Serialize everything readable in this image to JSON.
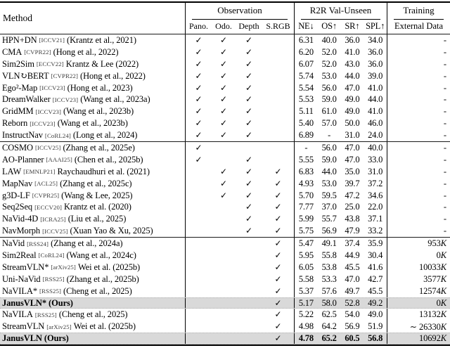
{
  "header": {
    "method": "Method",
    "groups": [
      {
        "title": "Observation",
        "cols": [
          "Pano.",
          "Odo.",
          "Depth",
          "S.RGB"
        ]
      },
      {
        "title": "R2R Val-Unseen",
        "cols": [
          "NE↓",
          "OS↑",
          "SR↑",
          "SPL↑"
        ]
      },
      {
        "title": "Training",
        "cols": [
          "External Data"
        ]
      }
    ]
  },
  "icons": {
    "check": "✓"
  },
  "colors": {
    "highlight": "#d9d9d9",
    "rule": "#000000"
  },
  "groups": [
    {
      "rows": [
        {
          "name": "HPN+DN",
          "tag": "ICCV21",
          "cite": "(Krantz et al., 2021)",
          "obs": [
            true,
            true,
            true,
            false
          ],
          "m": [
            "6.31",
            "40.0",
            "36.0",
            "34.0"
          ],
          "ext": "-",
          "extk": false,
          "bold": false,
          "boldMetrics": false,
          "highlight": false
        },
        {
          "name": "CMA",
          "tag": "CVPR22",
          "cite": "(Hong et al., 2022)",
          "obs": [
            true,
            true,
            true,
            false
          ],
          "m": [
            "6.20",
            "52.0",
            "41.0",
            "36.0"
          ],
          "ext": "-",
          "extk": false,
          "bold": false,
          "boldMetrics": false,
          "highlight": false
        },
        {
          "name": "Sim2Sim",
          "tag": "ECCV22",
          "cite": "Krantz & Lee (2022)",
          "obs": [
            true,
            true,
            true,
            false
          ],
          "m": [
            "6.07",
            "52.0",
            "43.0",
            "36.0"
          ],
          "ext": "-",
          "extk": false,
          "bold": false,
          "boldMetrics": false,
          "highlight": false
        },
        {
          "name": "VLN↻BERT",
          "tag": "CVPR22",
          "cite": "(Hong et al., 2022)",
          "obs": [
            true,
            true,
            true,
            false
          ],
          "m": [
            "5.74",
            "53.0",
            "44.0",
            "39.0"
          ],
          "ext": "-",
          "extk": false,
          "bold": false,
          "boldMetrics": false,
          "highlight": false
        },
        {
          "name": "Ego²-Map",
          "tag": "ICCV23",
          "cite": "(Hong et al., 2023)",
          "obs": [
            true,
            true,
            true,
            false
          ],
          "m": [
            "5.54",
            "56.0",
            "47.0",
            "41.0"
          ],
          "ext": "-",
          "extk": false,
          "bold": false,
          "boldMetrics": false,
          "highlight": false
        },
        {
          "name": "DreamWalker",
          "tag": "ICCV23",
          "cite": "(Wang et al., 2023a)",
          "obs": [
            true,
            true,
            true,
            false
          ],
          "m": [
            "5.53",
            "59.0",
            "49.0",
            "44.0"
          ],
          "ext": "-",
          "extk": false,
          "bold": false,
          "boldMetrics": false,
          "highlight": false
        },
        {
          "name": "GridMM",
          "tag": "ICCV23",
          "cite": "(Wang et al., 2023b)",
          "obs": [
            true,
            true,
            true,
            false
          ],
          "m": [
            "5.11",
            "61.0",
            "49.0",
            "41.0"
          ],
          "ext": "-",
          "extk": false,
          "bold": false,
          "boldMetrics": false,
          "highlight": false
        },
        {
          "name": "Reborn",
          "tag": "ICCV23",
          "cite": "(Wang et al., 2023b)",
          "obs": [
            true,
            true,
            true,
            false
          ],
          "m": [
            "5.40",
            "57.0",
            "50.0",
            "46.0"
          ],
          "ext": "-",
          "extk": false,
          "bold": false,
          "boldMetrics": false,
          "highlight": false
        },
        {
          "name": "InstructNav",
          "tag": "CoRL24",
          "cite": "(Long et al., 2024)",
          "obs": [
            true,
            true,
            true,
            false
          ],
          "m": [
            "6.89",
            "-",
            "31.0",
            "24.0"
          ],
          "ext": "-",
          "extk": false,
          "bold": false,
          "boldMetrics": false,
          "highlight": false
        }
      ]
    },
    {
      "rows": [
        {
          "name": "COSMO",
          "tag": "ICCV25",
          "cite": "(Zhang et al., 2025e)",
          "obs": [
            true,
            false,
            false,
            false
          ],
          "m": [
            "-",
            "56.0",
            "47.0",
            "40.0"
          ],
          "ext": "-",
          "extk": false,
          "bold": false,
          "boldMetrics": false,
          "highlight": false
        },
        {
          "name": "AO-Planner",
          "tag": "AAAI25",
          "cite": "(Chen et al., 2025b)",
          "obs": [
            true,
            false,
            true,
            false
          ],
          "m": [
            "5.55",
            "59.0",
            "47.0",
            "33.0"
          ],
          "ext": "-",
          "extk": false,
          "bold": false,
          "boldMetrics": false,
          "highlight": false
        },
        {
          "name": "LAW",
          "tag": "EMNLP21",
          "cite": "Raychaudhuri et al. (2021)",
          "obs": [
            false,
            true,
            true,
            true
          ],
          "m": [
            "6.83",
            "44.0",
            "35.0",
            "31.0"
          ],
          "ext": "-",
          "extk": false,
          "bold": false,
          "boldMetrics": false,
          "highlight": false
        },
        {
          "name": "MapNav",
          "tag": "ACL25",
          "cite": "(Zhang et al., 2025c)",
          "obs": [
            false,
            true,
            true,
            true
          ],
          "m": [
            "4.93",
            "53.0",
            "39.7",
            "37.2"
          ],
          "ext": "-",
          "extk": false,
          "bold": false,
          "boldMetrics": false,
          "highlight": false
        },
        {
          "name": "g3D-LF",
          "tag": "CVPR25",
          "cite": "(Wang & Lee, 2025)",
          "obs": [
            false,
            true,
            true,
            true
          ],
          "m": [
            "5.70",
            "59.5",
            "47.2",
            "34.6"
          ],
          "ext": "-",
          "extk": false,
          "bold": false,
          "boldMetrics": false,
          "highlight": false
        },
        {
          "name": "Seq2Seq",
          "tag": "ECCV20",
          "cite": "Krantz et al. (2020)",
          "obs": [
            false,
            false,
            true,
            true
          ],
          "m": [
            "7.77",
            "37.0",
            "25.0",
            "22.0"
          ],
          "ext": "-",
          "extk": false,
          "bold": false,
          "boldMetrics": false,
          "highlight": false
        },
        {
          "name": "NaVid-4D",
          "tag": "ICRA25",
          "cite": "(Liu et al., 2025)",
          "obs": [
            false,
            false,
            true,
            true
          ],
          "m": [
            "5.99",
            "55.7",
            "43.8",
            "37.1"
          ],
          "ext": "-",
          "extk": false,
          "bold": false,
          "boldMetrics": false,
          "highlight": false
        },
        {
          "name": "NavMorph",
          "tag": "ICCV25",
          "cite": "(Xuan Yao & Xu, 2025)",
          "obs": [
            false,
            false,
            true,
            true
          ],
          "m": [
            "5.75",
            "56.9",
            "47.9",
            "33.2"
          ],
          "ext": "-",
          "extk": false,
          "bold": false,
          "boldMetrics": false,
          "highlight": false
        }
      ]
    },
    {
      "rows": [
        {
          "name": "NaVid",
          "tag": "RSS24",
          "cite": "(Zhang et al., 2024a)",
          "obs": [
            false,
            false,
            false,
            true
          ],
          "m": [
            "5.47",
            "49.1",
            "37.4",
            "35.9"
          ],
          "ext": "953",
          "extk": true,
          "bold": false,
          "boldMetrics": false,
          "highlight": false
        },
        {
          "name": "Sim2Real",
          "tag": "CoRL24",
          "cite": "(Wang et al., 2024c)",
          "obs": [
            false,
            false,
            false,
            true
          ],
          "m": [
            "5.95",
            "55.8",
            "44.9",
            "30.4"
          ],
          "ext": "0",
          "extk": true,
          "bold": false,
          "boldMetrics": false,
          "highlight": false
        },
        {
          "name": "StreamVLN*",
          "tag": "arXiv25",
          "cite": "Wei et al. (2025b)",
          "obs": [
            false,
            false,
            false,
            true
          ],
          "m": [
            "6.05",
            "53.8",
            "45.5",
            "41.6"
          ],
          "ext": "10033",
          "extk": true,
          "bold": false,
          "boldMetrics": false,
          "highlight": false
        },
        {
          "name": "Uni-NaVid",
          "tag": "RSS25",
          "cite": "(Zhang et al., 2025b)",
          "obs": [
            false,
            false,
            false,
            true
          ],
          "m": [
            "5.58",
            "53.3",
            "47.0",
            "42.7"
          ],
          "ext": "3577",
          "extk": true,
          "bold": false,
          "boldMetrics": false,
          "highlight": false
        },
        {
          "name": "NaVILA*",
          "tag": "RSS25",
          "cite": "(Cheng et al., 2025)",
          "obs": [
            false,
            false,
            false,
            true
          ],
          "m": [
            "5.37",
            "57.6",
            "49.7",
            "45.5"
          ],
          "ext": "12574",
          "extk": true,
          "bold": false,
          "boldMetrics": false,
          "highlight": false
        },
        {
          "name": "JanusVLN* (Ours)",
          "tag": "",
          "cite": "",
          "obs": [
            false,
            false,
            false,
            true
          ],
          "m": [
            "5.17",
            "58.0",
            "52.8",
            "49.2"
          ],
          "ext": "0",
          "extk": true,
          "bold": true,
          "boldMetrics": false,
          "highlight": true
        },
        {
          "name": "NaVILA",
          "tag": "RSS25",
          "cite": "(Cheng et al., 2025)",
          "obs": [
            false,
            false,
            false,
            true
          ],
          "m": [
            "5.22",
            "62.5",
            "54.0",
            "49.0"
          ],
          "ext": "13132",
          "extk": true,
          "bold": false,
          "boldMetrics": false,
          "highlight": false
        },
        {
          "name": "StreamVLN",
          "tag": "arXiv25",
          "cite": "Wei et al. (2025b)",
          "obs": [
            false,
            false,
            false,
            true
          ],
          "m": [
            "4.98",
            "64.2",
            "56.9",
            "51.9"
          ],
          "ext": "∼ 26330",
          "extk": true,
          "bold": false,
          "boldMetrics": false,
          "highlight": false
        },
        {
          "name": "JanusVLN (Ours)",
          "tag": "",
          "cite": "",
          "obs": [
            false,
            false,
            false,
            true
          ],
          "m": [
            "4.78",
            "65.2",
            "60.5",
            "56.8"
          ],
          "ext": "10692",
          "extk": true,
          "bold": true,
          "boldMetrics": true,
          "highlight": true
        }
      ]
    }
  ]
}
